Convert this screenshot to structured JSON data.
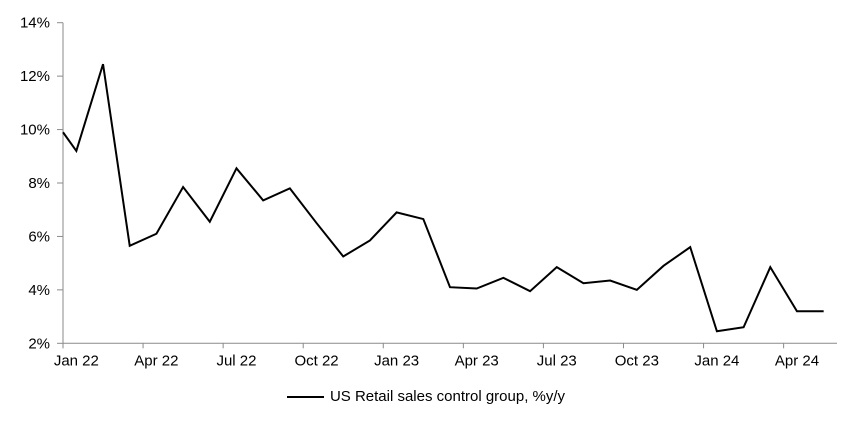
{
  "chart_data": {
    "type": "line",
    "title": "",
    "legend": "US Retail sales control group, %y/y",
    "legend_position": "bottom-center",
    "grid": false,
    "series_color": "#000000",
    "axis_color": "#8a8a8a",
    "label_color": "#000000",
    "ylim": [
      2,
      14
    ],
    "y_tick_step": 2,
    "y_tick_labels": [
      "2%",
      "4%",
      "6%",
      "8%",
      "10%",
      "12%",
      "14%"
    ],
    "x_tick_labels": [
      "Jan 22",
      "Apr 22",
      "Jul 22",
      "Oct 22",
      "Jan 23",
      "Apr 23",
      "Jul 23",
      "Oct 23",
      "Jan 24",
      "Apr 24"
    ],
    "x": [
      "Jan 22",
      "Feb 22",
      "Mar 22",
      "Apr 22",
      "May 22",
      "Jun 22",
      "Jul 22",
      "Aug 22",
      "Sep 22",
      "Oct 22",
      "Nov 22",
      "Dec 22",
      "Jan 23",
      "Feb 23",
      "Mar 23",
      "Apr 23",
      "May 23",
      "Jun 23",
      "Jul 23",
      "Aug 23",
      "Sep 23",
      "Oct 23",
      "Nov 23",
      "Dec 23",
      "Jan 24",
      "Feb 24",
      "Mar 24",
      "Apr 24",
      "May 24"
    ],
    "values": [
      9.2,
      12.45,
      5.65,
      6.1,
      7.85,
      6.55,
      8.55,
      7.35,
      7.8,
      6.5,
      5.25,
      5.85,
      6.9,
      6.65,
      4.1,
      4.05,
      4.45,
      3.95,
      4.85,
      4.25,
      4.35,
      4.0,
      4.9,
      5.6,
      2.45,
      2.6,
      4.85,
      3.2,
      3.2
    ],
    "left_edge_entry_value": 9.9
  }
}
